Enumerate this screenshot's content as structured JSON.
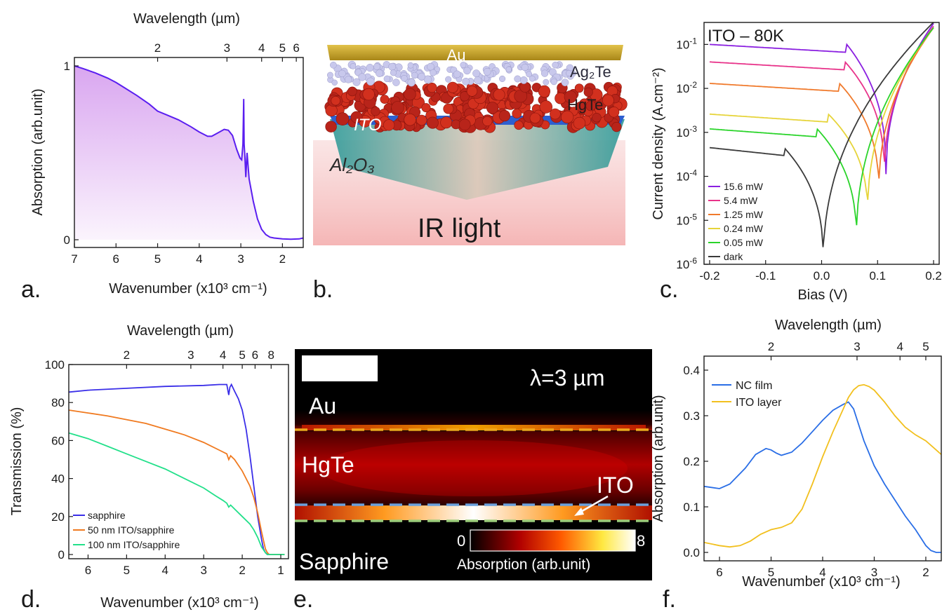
{
  "panel_labels": [
    "a.",
    "b.",
    "c.",
    "d.",
    "e.",
    "f."
  ],
  "chart_data": [
    {
      "id": "a",
      "type": "area",
      "xlabel": "Wavenumber (x10³ cm⁻¹)",
      "ylabel": "Absorption (arb.unit)",
      "top_xlabel": "Wavelength (µm)",
      "xlim": [
        7,
        1.5
      ],
      "ylim": [
        -0.02,
        1.08
      ],
      "x_ticks": [
        7,
        6,
        5,
        4,
        3,
        2
      ],
      "y_ticks": [
        0,
        1
      ],
      "top_ticks_um": [
        2,
        3,
        4,
        5,
        6
      ],
      "series": [
        {
          "color": "#5a1ef0",
          "fill_top": "#d9a6f0",
          "fill_bottom": "#fbf4fd",
          "x": [
            7.0,
            6.8,
            6.5,
            6.2,
            6.0,
            5.8,
            5.5,
            5.2,
            5.0,
            4.8,
            4.5,
            4.2,
            4.0,
            3.8,
            3.7,
            3.55,
            3.4,
            3.3,
            3.2,
            3.1,
            3.02,
            2.98,
            2.95,
            2.93,
            2.92,
            2.9,
            2.88,
            2.85,
            2.8,
            2.7,
            2.6,
            2.5,
            2.4,
            2.3,
            2.2,
            2.0,
            1.8,
            1.6,
            1.5
          ],
          "y": [
            1.0,
            0.985,
            0.96,
            0.93,
            0.905,
            0.875,
            0.83,
            0.78,
            0.74,
            0.72,
            0.69,
            0.65,
            0.62,
            0.595,
            0.595,
            0.615,
            0.635,
            0.63,
            0.6,
            0.52,
            0.47,
            0.46,
            0.55,
            0.81,
            0.55,
            0.47,
            0.36,
            0.5,
            0.35,
            0.22,
            0.12,
            0.06,
            0.03,
            0.015,
            0.01,
            0.005,
            0.003,
            0.005,
            0.01
          ]
        }
      ]
    },
    {
      "id": "c",
      "type": "line",
      "title": "ITO – 80K",
      "xlabel": "Bias (V)",
      "ylabel": "Current density (A.cm⁻²)",
      "xlim": [
        -0.21,
        0.21
      ],
      "ylim_log10": [
        -6,
        -0.5
      ],
      "x_ticks": [
        -0.2,
        -0.1,
        0.0,
        0.1,
        0.2
      ],
      "y_ticks_exp": [
        -6,
        -5,
        -4,
        -3,
        -2,
        -1
      ],
      "legend": "bottom-left",
      "series": [
        {
          "name": "15.6 mW",
          "color": "#8a1fe0",
          "v0": 0.115,
          "jsc": 0.1,
          "log_dip": -3.95,
          "end": 0.3
        },
        {
          "name": "5.4 mW",
          "color": "#e8338a",
          "v0": 0.112,
          "jsc": 0.04,
          "log_dip": -4.0,
          "end": 0.26
        },
        {
          "name": "1.25 mW",
          "color": "#f07a2c",
          "v0": 0.102,
          "jsc": 0.013,
          "log_dip": -4.4,
          "end": 0.24
        },
        {
          "name": "0.24 mW",
          "color": "#e6d43a",
          "v0": 0.082,
          "jsc": 0.0026,
          "log_dip": -4.9,
          "end": 0.24
        },
        {
          "name": "0.05 mW",
          "color": "#2ad42a",
          "v0": 0.062,
          "jsc": 0.0012,
          "log_dip": -5.5,
          "end": 0.24
        },
        {
          "name": "dark",
          "color": "#3a3a3a",
          "v0": 0.003,
          "jsc": 0.00045,
          "log_dip": -6.0,
          "end": 0.32
        }
      ]
    },
    {
      "id": "d",
      "type": "line",
      "xlabel": "Wavenumber (x10³ cm⁻¹)",
      "ylabel": "Transmission (%)",
      "top_xlabel": "Wavelength (µm)",
      "xlim": [
        6.5,
        0.8
      ],
      "ylim": [
        -2,
        100
      ],
      "x_ticks": [
        6,
        5,
        4,
        3,
        2,
        1
      ],
      "y_ticks": [
        0,
        20,
        40,
        60,
        80,
        100
      ],
      "top_ticks_um": [
        2,
        3,
        4,
        5,
        6,
        8
      ],
      "legend": "bottom-left",
      "series": [
        {
          "name": "sapphire",
          "color": "#3a2ee8",
          "x": [
            6.5,
            6.0,
            5.0,
            4.0,
            3.0,
            2.6,
            2.4,
            2.35,
            2.32,
            2.28,
            2.2,
            2.1,
            2.0,
            1.9,
            1.8,
            1.7,
            1.6,
            1.5,
            1.45,
            1.4,
            1.35,
            1.3,
            1.2,
            1.0,
            0.9
          ],
          "y": [
            85.5,
            86.5,
            87.5,
            88.5,
            89,
            89.5,
            89.5,
            84,
            88,
            89.5,
            86,
            82,
            76,
            66,
            52,
            36,
            20,
            8,
            3,
            1,
            0,
            0,
            0,
            0,
            0
          ]
        },
        {
          "name": "50 nm ITO/sapphire",
          "color": "#f07a20",
          "x": [
            6.5,
            6.0,
            5.5,
            5.0,
            4.5,
            4.0,
            3.5,
            3.0,
            2.6,
            2.4,
            2.35,
            2.3,
            2.2,
            2.0,
            1.8,
            1.7,
            1.6,
            1.5,
            1.4,
            1.35,
            1.3,
            1.2,
            1.0,
            0.9
          ],
          "y": [
            76,
            74.5,
            73,
            71,
            69,
            66,
            63,
            59,
            55,
            53,
            50,
            52,
            50,
            44,
            36,
            30,
            22,
            12,
            3,
            1,
            0,
            0,
            0,
            0
          ]
        },
        {
          "name": "100 nm ITO/sapphire",
          "color": "#22e08a",
          "x": [
            6.5,
            6.0,
            5.5,
            5.0,
            4.5,
            4.0,
            3.5,
            3.0,
            2.7,
            2.5,
            2.4,
            2.35,
            2.3,
            2.2,
            2.0,
            1.8,
            1.7,
            1.6,
            1.5,
            1.4,
            1.35,
            1.3,
            1.2,
            1.0,
            0.9
          ],
          "y": [
            64,
            61,
            57,
            53,
            49,
            45,
            40,
            35,
            31,
            28.5,
            27,
            25,
            26,
            24,
            20,
            16,
            13,
            9,
            4,
            1,
            0,
            0,
            0,
            0,
            0
          ]
        }
      ]
    },
    {
      "id": "e",
      "type": "heatmap",
      "title": "λ=3 µm",
      "layers": [
        "Au",
        "HgTe",
        "ITO",
        "Sapphire"
      ],
      "colorbar_label": "Absorption (arb.unit)",
      "colorbar_range": [
        0,
        8
      ],
      "interface_colors": [
        "#f0a81e",
        "#6aa0dc",
        "#9acc7a"
      ]
    },
    {
      "id": "f",
      "type": "line",
      "xlabel": "Wavenumber (x10³ cm⁻¹)",
      "ylabel": "Absorption (arb.unit)",
      "top_xlabel": "Wavelength (µm)",
      "xlim": [
        6.3,
        1.7
      ],
      "ylim": [
        -0.01,
        0.43
      ],
      "x_ticks": [
        6,
        5,
        4,
        3,
        2
      ],
      "y_ticks": [
        0.0,
        0.1,
        0.2,
        0.3,
        0.4
      ],
      "top_ticks_um": [
        2,
        3,
        4,
        5
      ],
      "legend": "top-left",
      "series": [
        {
          "name": "NC film",
          "color": "#2a6ee6",
          "x": [
            6.3,
            6.0,
            5.8,
            5.5,
            5.3,
            5.1,
            5.0,
            4.9,
            4.8,
            4.6,
            4.4,
            4.2,
            4.0,
            3.8,
            3.6,
            3.5,
            3.4,
            3.3,
            3.2,
            3.0,
            2.8,
            2.6,
            2.4,
            2.2,
            2.0,
            1.9,
            1.8,
            1.7
          ],
          "y": [
            0.145,
            0.14,
            0.15,
            0.185,
            0.215,
            0.228,
            0.225,
            0.218,
            0.213,
            0.22,
            0.24,
            0.265,
            0.29,
            0.312,
            0.325,
            0.33,
            0.315,
            0.28,
            0.245,
            0.19,
            0.15,
            0.115,
            0.08,
            0.05,
            0.015,
            0.004,
            0.0,
            0.0
          ]
        },
        {
          "name": "ITO layer",
          "color": "#f2c01e",
          "x": [
            6.3,
            6.0,
            5.8,
            5.6,
            5.4,
            5.2,
            5.0,
            4.8,
            4.6,
            4.4,
            4.2,
            4.0,
            3.8,
            3.6,
            3.5,
            3.4,
            3.3,
            3.2,
            3.1,
            3.0,
            2.8,
            2.6,
            2.4,
            2.2,
            2.0,
            1.8,
            1.7
          ],
          "y": [
            0.022,
            0.015,
            0.012,
            0.015,
            0.025,
            0.04,
            0.05,
            0.055,
            0.065,
            0.095,
            0.15,
            0.21,
            0.265,
            0.315,
            0.34,
            0.357,
            0.366,
            0.368,
            0.364,
            0.356,
            0.33,
            0.3,
            0.275,
            0.258,
            0.245,
            0.225,
            0.215
          ]
        }
      ]
    }
  ],
  "schematic_b": {
    "layers": [
      "Au",
      "Ag₂Te",
      "HgTe",
      "ITO",
      "Al₂O₃"
    ],
    "caption": "IR light"
  }
}
